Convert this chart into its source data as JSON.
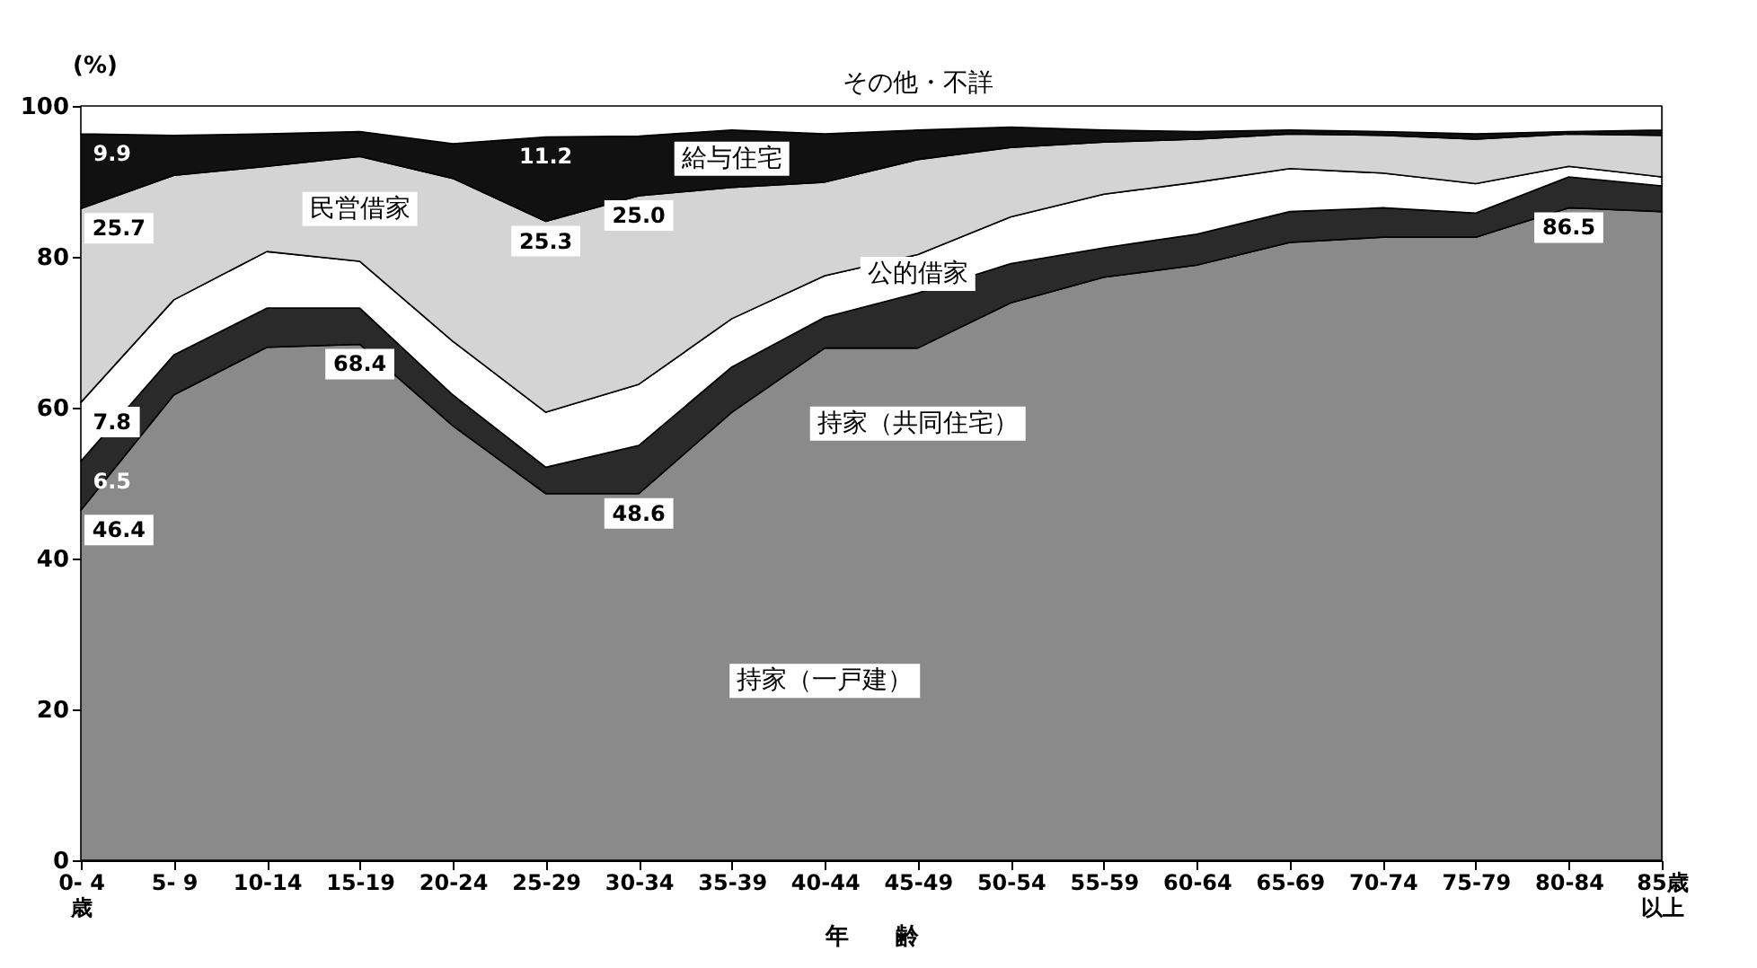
{
  "chart_data": {
    "type": "area",
    "stacked": true,
    "xlabel": "年　　齢",
    "ylabel": "(%)",
    "categories": [
      "0- 4\n歳",
      "5- 9",
      "10-14",
      "15-19",
      "20-24",
      "25-29",
      "30-34",
      "35-39",
      "40-44",
      "45-49",
      "50-54",
      "55-59",
      "60-64",
      "65-69",
      "70-74",
      "75-79",
      "80-84",
      "85歳以上"
    ],
    "ylim": [
      0,
      100
    ],
    "yticks": [
      0,
      20,
      40,
      60,
      80,
      100
    ],
    "legend": false,
    "series": [
      {
        "name": "持家（一戸建）",
        "color": "#8a8a8a",
        "values": [
          46.4,
          61.7,
          68.0,
          68.4,
          57.6,
          48.6,
          48.6,
          59.4,
          67.9,
          67.9,
          73.9,
          77.3,
          78.9,
          81.9,
          82.6,
          82.6,
          86.5,
          86.0
        ],
        "value_labels": [
          "46.4",
          null,
          null,
          "68.4",
          null,
          null,
          "48.6",
          null,
          null,
          null,
          null,
          null,
          null,
          null,
          null,
          null,
          "86.5",
          null
        ]
      },
      {
        "name": "持家（共同住宅）",
        "color": "#2a2a2a",
        "values": [
          6.5,
          5.3,
          5.2,
          4.8,
          4.1,
          3.5,
          6.4,
          6.0,
          4.1,
          7.3,
          5.2,
          3.9,
          4.1,
          4.1,
          3.9,
          3.2,
          4.1,
          3.4
        ],
        "value_labels": [
          "6.5",
          null,
          null,
          null,
          null,
          null,
          null,
          null,
          null,
          null,
          null,
          null,
          null,
          null,
          null,
          null,
          null,
          null
        ]
      },
      {
        "name": "公的借家",
        "color": "#ffffff",
        "values": [
          7.8,
          7.3,
          7.5,
          6.2,
          7.1,
          7.3,
          8.1,
          6.4,
          5.5,
          5.1,
          6.2,
          7.1,
          6.9,
          5.7,
          4.6,
          3.9,
          1.4,
          1.2
        ],
        "value_labels": [
          "7.8",
          null,
          null,
          null,
          null,
          null,
          null,
          null,
          null,
          null,
          null,
          null,
          null,
          null,
          null,
          null,
          null,
          null
        ]
      },
      {
        "name": "民営借家",
        "color": "#d4d4d4",
        "values": [
          25.7,
          16.5,
          11.3,
          13.9,
          21.6,
          25.3,
          25.0,
          17.4,
          12.4,
          12.6,
          9.2,
          6.9,
          5.7,
          4.6,
          5.0,
          5.9,
          4.3,
          5.5
        ],
        "value_labels": [
          "25.7",
          null,
          null,
          null,
          null,
          "25.3",
          "25.0",
          null,
          null,
          null,
          null,
          null,
          null,
          null,
          null,
          null,
          null,
          null
        ]
      },
      {
        "name": "給与住宅",
        "color": "#111111",
        "values": [
          9.9,
          5.3,
          4.3,
          3.3,
          4.6,
          11.2,
          7.9,
          7.6,
          6.4,
          3.9,
          2.7,
          1.6,
          1.0,
          0.5,
          0.5,
          0.7,
          0.3,
          0.7
        ],
        "value_labels": [
          "9.9",
          null,
          null,
          null,
          null,
          "11.2",
          null,
          null,
          null,
          null,
          null,
          null,
          null,
          null,
          null,
          null,
          null,
          null
        ]
      },
      {
        "name": "その他・不詳",
        "color": "#ffffff",
        "values": [
          3.7,
          3.9,
          3.7,
          3.4,
          5.0,
          4.1,
          4.0,
          3.2,
          3.7,
          3.2,
          2.8,
          3.2,
          3.4,
          3.2,
          3.4,
          3.7,
          3.4,
          3.2
        ]
      }
    ]
  }
}
